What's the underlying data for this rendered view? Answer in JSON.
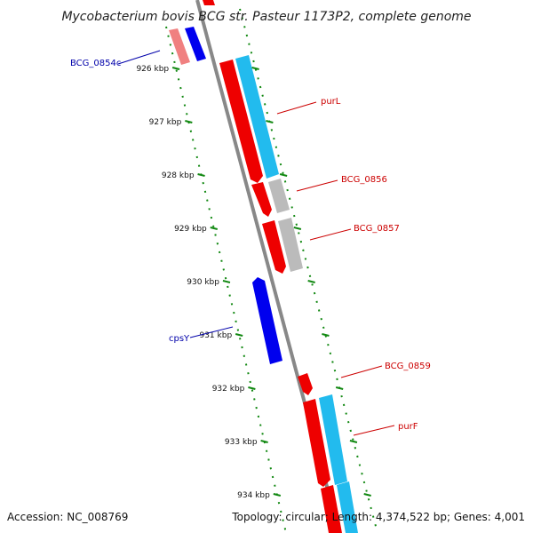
{
  "title": "Mycobacterium bovis BCG str. Pasteur 1173P2, complete genome",
  "footer": {
    "accession": "Accession: NC_008769",
    "summary": "Topology: circular; Length: 4,374,522 bp; Genes: 4,001"
  },
  "colors": {
    "forward_cds": "#ee0000",
    "forward_rna": "#22bbee",
    "reverse_cds": "#0000ee",
    "pseudo": "#bbbbbb",
    "forward_label": "#cc0000",
    "reverse_label": "#0000aa",
    "tick": "#118811",
    "backbone": "#888888"
  },
  "ticks": [
    "926 kbp",
    "927 kbp",
    "928 kbp",
    "929 kbp",
    "930 kbp",
    "931 kbp",
    "932 kbp",
    "933 kbp",
    "934 kbp"
  ],
  "gene_labels": [
    {
      "name": "BCG_0854c",
      "strand": "reverse"
    },
    {
      "name": "purL",
      "strand": "forward"
    },
    {
      "name": "BCG_0856",
      "strand": "forward"
    },
    {
      "name": "BCG_0857",
      "strand": "forward"
    },
    {
      "name": "cpsY",
      "strand": "reverse"
    },
    {
      "name": "BCG_0859",
      "strand": "forward"
    },
    {
      "name": "purF",
      "strand": "forward"
    }
  ]
}
